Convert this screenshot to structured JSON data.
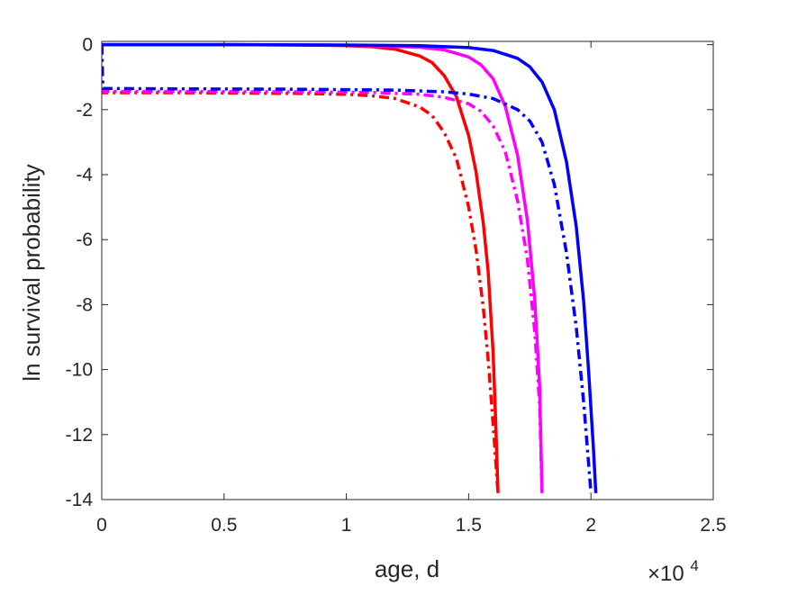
{
  "chart_data": {
    "type": "line",
    "title": "",
    "xlabel": "age, d",
    "ylabel": "ln survival probability",
    "x_exponent_label": {
      "base": "×10",
      "power": "4"
    },
    "xlim": [
      0,
      2.5
    ],
    "ylim": [
      -14,
      0.1
    ],
    "x_units_multiplier": 10000,
    "xticks": [
      0,
      0.5,
      1,
      1.5,
      2,
      2.5
    ],
    "xtick_labels": [
      "0",
      "0.5",
      "1",
      "1.5",
      "2",
      "2.5"
    ],
    "yticks": [
      0,
      -2,
      -4,
      -6,
      -8,
      -10,
      -12,
      -14
    ],
    "ytick_labels": [
      "0",
      "-2",
      "-4",
      "-6",
      "-8",
      "-10",
      "-12",
      "-14"
    ],
    "grid": false,
    "legend": "none",
    "series": [
      {
        "color": "#ff0000",
        "style": "solid",
        "x": [
          0,
          0.5,
          0.8,
          1.0,
          1.1,
          1.2,
          1.3,
          1.35,
          1.4,
          1.45,
          1.5,
          1.53,
          1.56,
          1.58,
          1.6,
          1.61,
          1.62
        ],
        "y": [
          0,
          0,
          -0.01,
          -0.03,
          -0.06,
          -0.14,
          -0.35,
          -0.55,
          -0.95,
          -1.6,
          -2.8,
          -3.9,
          -5.5,
          -7.0,
          -9.5,
          -11.5,
          -13.8
        ]
      },
      {
        "color": "#ff0000",
        "style": "dashdot",
        "x": [
          0,
          0.003,
          0.006,
          0.3,
          0.8,
          1.0,
          1.1,
          1.2,
          1.3,
          1.35,
          1.4,
          1.45,
          1.5,
          1.53,
          1.56,
          1.58,
          1.6,
          1.62
        ],
        "y": [
          0,
          -1.1,
          -1.48,
          -1.48,
          -1.5,
          -1.53,
          -1.57,
          -1.66,
          -1.92,
          -2.18,
          -2.7,
          -3.5,
          -5.0,
          -6.3,
          -8.1,
          -9.7,
          -11.7,
          -13.8
        ]
      },
      {
        "color": "#ff00ff",
        "style": "solid",
        "x": [
          0,
          0.5,
          0.9,
          1.1,
          1.3,
          1.4,
          1.5,
          1.55,
          1.6,
          1.65,
          1.7,
          1.74,
          1.77,
          1.79,
          1.8
        ],
        "y": [
          0,
          0,
          -0.01,
          -0.03,
          -0.08,
          -0.16,
          -0.38,
          -0.62,
          -1.05,
          -1.9,
          -3.4,
          -5.4,
          -7.8,
          -10.5,
          -13.8
        ]
      },
      {
        "color": "#ff00ff",
        "style": "dashdot",
        "x": [
          0,
          0.003,
          0.006,
          0.3,
          0.8,
          1.1,
          1.3,
          1.4,
          1.5,
          1.55,
          1.6,
          1.65,
          1.7,
          1.74,
          1.77,
          1.79,
          1.8
        ],
        "y": [
          0,
          -1.1,
          -1.44,
          -1.44,
          -1.45,
          -1.47,
          -1.53,
          -1.62,
          -1.82,
          -2.05,
          -2.5,
          -3.3,
          -4.8,
          -6.6,
          -8.8,
          -11.1,
          -13.8
        ]
      },
      {
        "color": "#0000ff",
        "style": "solid",
        "x": [
          0,
          0.5,
          1.0,
          1.3,
          1.5,
          1.6,
          1.7,
          1.75,
          1.8,
          1.85,
          1.9,
          1.94,
          1.97,
          1.99,
          2.01,
          2.02
        ],
        "y": [
          0,
          0,
          -0.01,
          -0.03,
          -0.09,
          -0.18,
          -0.42,
          -0.68,
          -1.15,
          -2.0,
          -3.6,
          -5.6,
          -7.9,
          -10.0,
          -12.4,
          -13.8
        ]
      },
      {
        "color": "#0000ff",
        "style": "dashdot",
        "x": [
          0,
          0.003,
          0.006,
          0.3,
          0.8,
          1.2,
          1.4,
          1.5,
          1.6,
          1.7,
          1.75,
          1.8,
          1.85,
          1.9,
          1.94,
          1.97,
          2.0
        ],
        "y": [
          0,
          -1.0,
          -1.35,
          -1.36,
          -1.37,
          -1.4,
          -1.45,
          -1.52,
          -1.66,
          -2.0,
          -2.35,
          -3.0,
          -4.3,
          -6.4,
          -8.7,
          -11.0,
          -13.8
        ]
      }
    ]
  }
}
